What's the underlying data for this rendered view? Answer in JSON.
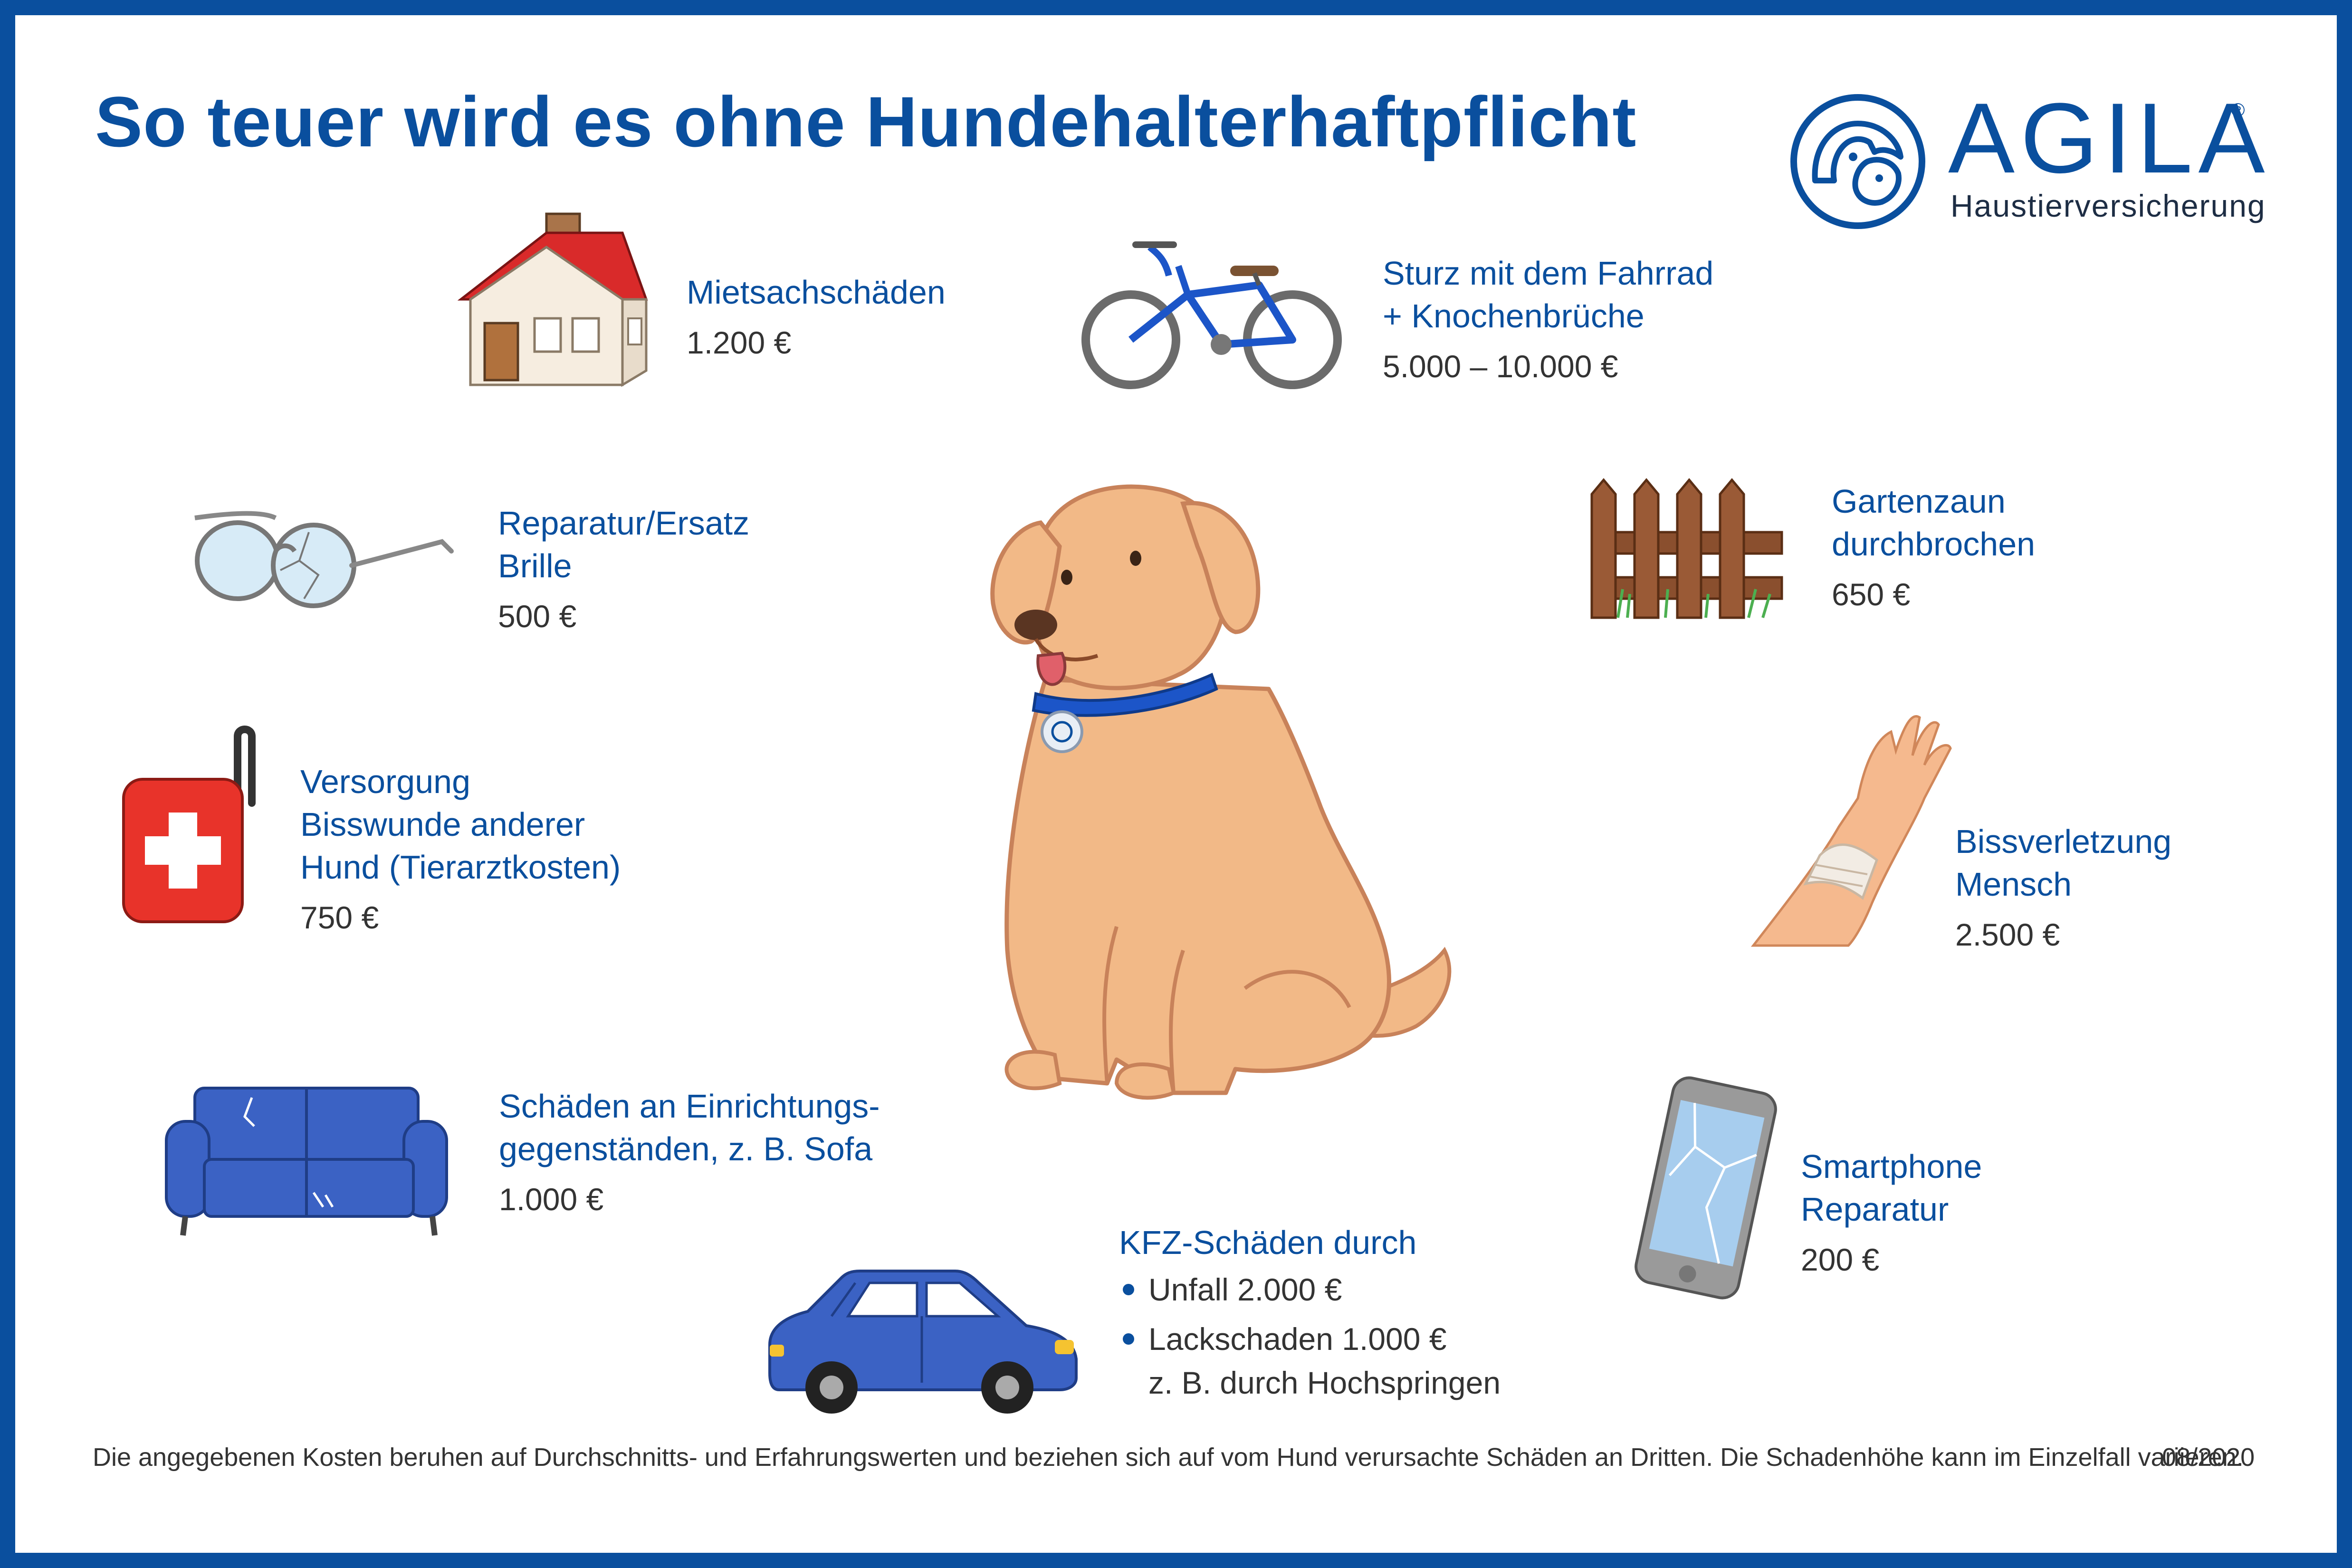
{
  "title": "So teuer wird es ohne Hundehalterhaftpflicht",
  "logo": {
    "name": "AGILA",
    "registered": "®",
    "subtitle": "Haustierversicherung"
  },
  "colors": {
    "brand_blue": "#0a4f9e",
    "text_gray": "#333333"
  },
  "items": {
    "mietsach": {
      "icon": "house-icon",
      "label": "Mietsachschäden",
      "cost": "1.200 €"
    },
    "fahrrad": {
      "icon": "bicycle-icon",
      "label_1": "Sturz mit dem Fahrrad",
      "label_2": "+ Knochenbrüche",
      "cost": "5.000 – 10.000 €"
    },
    "brille": {
      "icon": "glasses-icon",
      "label_1": "Reparatur/Ersatz",
      "label_2": "Brille",
      "cost": "500 €"
    },
    "zaun": {
      "icon": "fence-icon",
      "label_1": "Gartenzaun",
      "label_2": "durchbrochen",
      "cost": "650 €"
    },
    "bisswunde": {
      "icon": "first-aid-kit-icon",
      "label_1": "Versorgung",
      "label_2": "Bisswunde anderer",
      "label_3": "Hund (Tierarztkosten)",
      "cost": "750 €"
    },
    "bissverletzung": {
      "icon": "bandaged-arm-icon",
      "label_1": "Bissverletzung",
      "label_2": "Mensch",
      "cost": "2.500 €"
    },
    "sofa": {
      "icon": "sofa-icon",
      "label_1": "Schäden an Einrichtungs-",
      "label_2": "gegenständen, z. B. Sofa",
      "cost": "1.000 €"
    },
    "smartphone": {
      "icon": "smartphone-icon",
      "label_1": "Smartphone",
      "label_2": "Reparatur",
      "cost": "200 €"
    },
    "kfz": {
      "icon": "car-icon",
      "label": "KFZ-Schäden durch",
      "bullet_1": "Unfall 2.000 €",
      "bullet_2": "Lackschaden 1.000 €",
      "bullet_2_sub": "z. B. durch Hochspringen"
    }
  },
  "center_icon": "dog-icon",
  "footer": {
    "disclaimer": "Die angegebenen Kosten beruhen auf Durchschnitts- und Erfahrungswerten und beziehen sich auf vom Hund verursachte Schäden an Dritten. Die Schadenhöhe kann im Einzelfall variieren.",
    "date": "08/2020"
  }
}
